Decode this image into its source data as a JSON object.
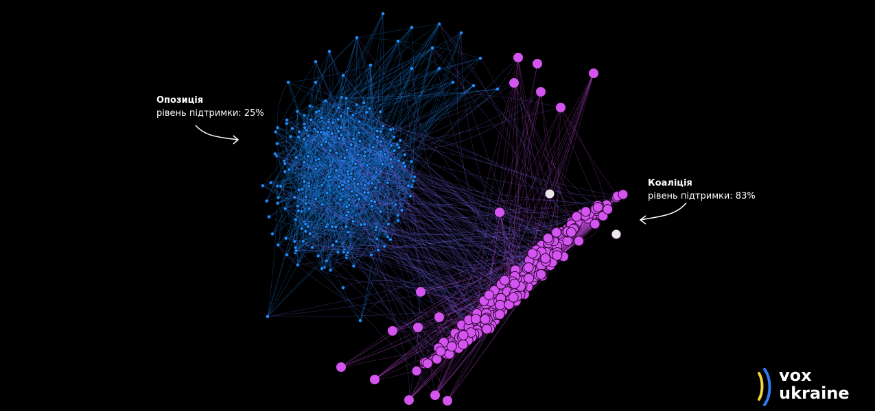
{
  "clusters": {
    "opposition": {
      "title": "Опозиція",
      "support": "рівень підтримки: 25%",
      "support_pct": 25,
      "color": "#1e90ff"
    },
    "coalition": {
      "title": "Коаліція",
      "support": "рівень підтримки: 83%",
      "support_pct": 83,
      "color": "#d454f0"
    }
  },
  "logo": {
    "line1": "vox",
    "line2": "ukraine",
    "colors": [
      "#2f7bf5",
      "#f5d33a"
    ]
  }
}
